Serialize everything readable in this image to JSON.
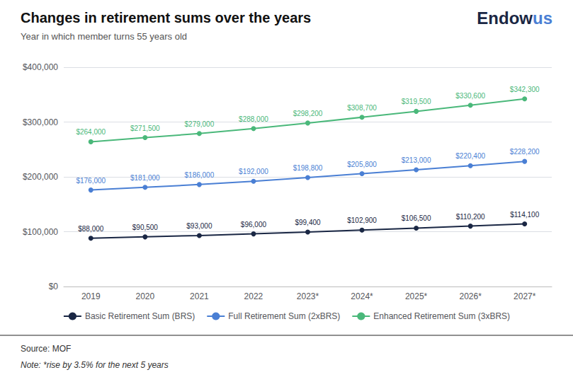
{
  "chart_data": {
    "type": "line",
    "title": "Changes in retirement sums over the years",
    "subtitle": "Year in which member turns 55 years old",
    "annotations": [
      {
        "text": "Endow",
        "color": "#1a2744"
      },
      {
        "text": "us",
        "color": "#4a7fd4"
      }
    ],
    "source": "Source: MOF",
    "note": "Note: *rise by 3.5% for the next 5 years",
    "categories": [
      "2019",
      "2020",
      "2021",
      "2022",
      "2023*",
      "2024*",
      "2025*",
      "2026*",
      "2027*"
    ],
    "series": [
      {
        "name": "Basic Retirement Sum (BRS)",
        "color": "#1a2744",
        "values": [
          88000,
          90500,
          93000,
          96000,
          99400,
          102900,
          106500,
          110200,
          114100
        ],
        "value_labels": [
          "$88,000",
          "$90,500",
          "$93,000",
          "$96,000",
          "$99,400",
          "$102,900",
          "$106,500",
          "$110,200",
          "$114,100"
        ]
      },
      {
        "name": "Full Retirement Sum (2xBRS)",
        "color": "#4a7fd4",
        "values": [
          176000,
          181000,
          186000,
          192000,
          198800,
          205800,
          213000,
          220400,
          228200
        ],
        "value_labels": [
          "$176,000",
          "$181,000",
          "$186,000",
          "$192,000",
          "$198,800",
          "$205,800",
          "$213,000",
          "$220,400",
          "$228,200"
        ]
      },
      {
        "name": "Enhanced Retirement Sum (3xBRS)",
        "color": "#4ab87a",
        "values": [
          264000,
          271500,
          279000,
          288000,
          298200,
          308700,
          319500,
          330600,
          342300
        ],
        "value_labels": [
          "$264,000",
          "$271,500",
          "$279,000",
          "$288,000",
          "$298,200",
          "$308,700",
          "$319,500",
          "$330,600",
          "$342,300"
        ]
      }
    ],
    "ylim": [
      0,
      400000
    ],
    "yticks": [
      {
        "value": 0,
        "label": "$0"
      },
      {
        "value": 100000,
        "label": "$100,000"
      },
      {
        "value": 200000,
        "label": "$200,000"
      },
      {
        "value": 300000,
        "label": "$300,000"
      },
      {
        "value": 400000,
        "label": "$400,000"
      }
    ],
    "grid": true,
    "legend": "bottom",
    "data_labels": true,
    "marker": "circle"
  }
}
